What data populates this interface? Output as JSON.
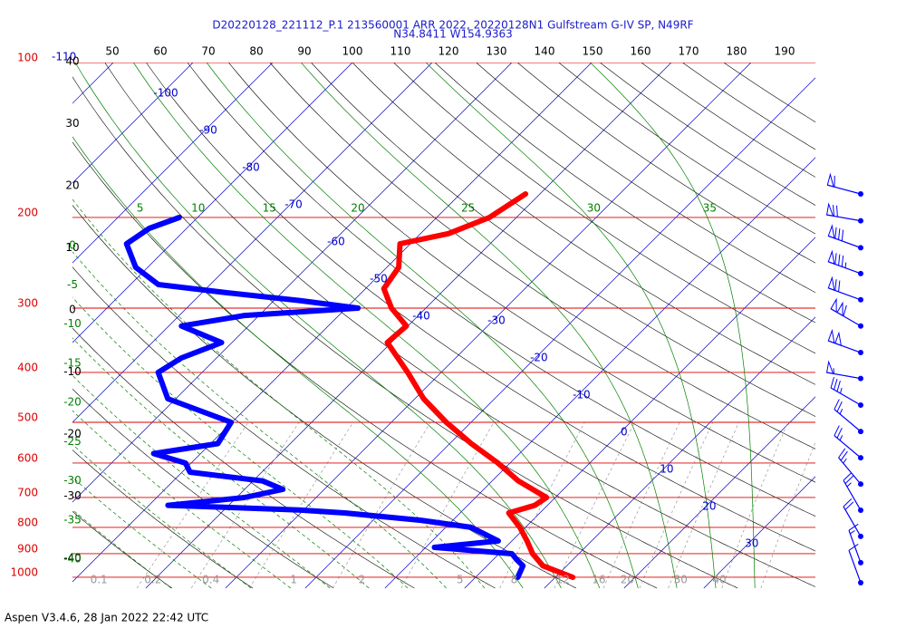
{
  "chart_data": {
    "type": "skewt",
    "title": "D20220128_221112_P.1 213560001 ARR 2022, 20220128N1 Gulfstream G-IV SP, N49RF",
    "subtitle": "N34.8411 W154.9363",
    "footer": "Aspen V3.4.6, 28 Jan 2022  22:42 UTC",
    "log_y": true,
    "ylim": [
      100,
      1050
    ],
    "yticks": [
      100,
      200,
      300,
      400,
      500,
      600,
      700,
      800,
      900,
      1000
    ],
    "isobar_color": "#dd0000",
    "xlim": [
      -49.2,
      44.0
    ],
    "xticks": [
      -110,
      -100,
      -90,
      -80,
      -70,
      -60,
      -50,
      -40,
      -30,
      -20,
      -10,
      0,
      10,
      20,
      30
    ],
    "isotherm_color": "#0000cc",
    "dry_adiabats": {
      "color": "#000000",
      "values": [
        -40,
        -30,
        -20,
        -10,
        0,
        10,
        20,
        30,
        40,
        50,
        60,
        70,
        80,
        90,
        100,
        110,
        120,
        130,
        140,
        150,
        160,
        170,
        180,
        190
      ]
    },
    "moist_adiabats": {
      "color": "#008000",
      "values": [
        -40,
        -35,
        -30,
        -25,
        -20,
        -15,
        -10,
        -5,
        0,
        5,
        10,
        15,
        20,
        25,
        30,
        35
      ]
    },
    "mixing_ratio": {
      "color": "#999999",
      "values": [
        0.1,
        0.2,
        0.4,
        1,
        2,
        5,
        8,
        12,
        16,
        20,
        30,
        40
      ]
    },
    "series": [
      {
        "color": "#ff0000",
        "pressure": [
          1000,
          950,
          900,
          850,
          800,
          750,
          725,
          700,
          650,
          600,
          550,
          500,
          450,
          400,
          350,
          325,
          300,
          275,
          250,
          225,
          215,
          200,
          180
        ],
        "values": [
          12.2,
          7.0,
          4.2,
          1.9,
          -0.7,
          -3.9,
          -1.6,
          -1.1,
          -6.7,
          -11.5,
          -17.3,
          -23.1,
          -28.9,
          -34.2,
          -40.5,
          -40.2,
          -44.3,
          -47.7,
          -48.5,
          -51.3,
          -46.5,
          -43.4,
          -41.8
        ]
      },
      {
        "color": "#0000ff",
        "pressure": [
          1000,
          950,
          925,
          900,
          875,
          850,
          800,
          775,
          750,
          740,
          725,
          700,
          675,
          650,
          625,
          600,
          575,
          550,
          500,
          450,
          400,
          375,
          350,
          325,
          310,
          300,
          290,
          280,
          270,
          250,
          225,
          210,
          200
        ],
        "values": [
          5.3,
          4.5,
          3.0,
          1.6,
          -8.9,
          -1.7,
          -6.8,
          -14.0,
          -24.5,
          -30.6,
          -47.6,
          -39.0,
          -35.2,
          -38.8,
          -49.0,
          -50.7,
          -55.9,
          -49.1,
          -50.1,
          -61.0,
          -65.5,
          -64.4,
          -61.3,
          -68.4,
          -61.8,
          -48.5,
          -56.8,
          -66.9,
          -76.5,
          -81.5,
          -85.6,
          -84.7,
          -82.3
        ]
      }
    ],
    "wind": {
      "color": "#0000ff",
      "pressure": [
        180,
        203,
        229,
        257,
        289,
        325,
        366,
        411,
        463,
        521,
        586,
        659,
        741,
        833,
        937,
        1025
      ],
      "speed": [
        60,
        70,
        80,
        85,
        70,
        110,
        100,
        55,
        35,
        25,
        25,
        25,
        25,
        20,
        15,
        10
      ],
      "direction": [
        285,
        280,
        290,
        290,
        290,
        300,
        290,
        280,
        300,
        310,
        310,
        320,
        330,
        330,
        340,
        340
      ]
    }
  }
}
